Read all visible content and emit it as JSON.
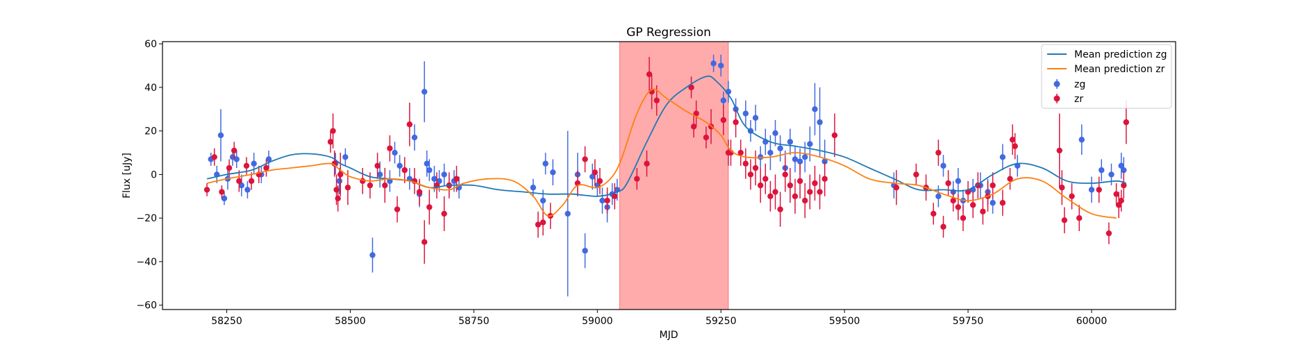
{
  "chart_data": {
    "type": "scatter",
    "title": "GP Regression",
    "xlabel": "MJD",
    "ylabel": "Flux [uJy]",
    "xlim": [
      58120,
      60170
    ],
    "ylim": [
      -62,
      61
    ],
    "x_ticks": [
      58250,
      58500,
      58750,
      59000,
      59250,
      59500,
      59750,
      60000
    ],
    "y_ticks": [
      -60,
      -40,
      -20,
      0,
      20,
      40,
      60
    ],
    "grid": false,
    "legend_position": "top-right",
    "legend": [
      {
        "label": "Mean prediction zg",
        "kind": "line",
        "color": "#1f77b4"
      },
      {
        "label": "Mean prediction zr",
        "kind": "line",
        "color": "#ff7f0e"
      },
      {
        "label": "zg",
        "kind": "errorbar",
        "color": "#4169e1"
      },
      {
        "label": "zr",
        "kind": "errorbar",
        "color": "#dc143c"
      }
    ],
    "shaded_region": {
      "x": [
        59045,
        59265
      ],
      "color": "#ff0000",
      "alpha": 0.33
    },
    "lines": [
      {
        "name": "Mean prediction zg",
        "color": "#1f77b4",
        "x": [
          58210,
          58250,
          58300,
          58340,
          58380,
          58420,
          58460,
          58480,
          58500,
          58540,
          58580,
          58620,
          58660,
          58700,
          58750,
          58800,
          58850,
          58900,
          58950,
          59000,
          59040,
          59060,
          59100,
          59140,
          59180,
          59220,
          59240,
          59270,
          59300,
          59350,
          59400,
          59450,
          59500,
          59550,
          59600,
          59650,
          59700,
          59750,
          59800,
          59850,
          59900,
          59950,
          60000,
          60050,
          60070
        ],
        "y": [
          -2,
          0,
          2,
          6,
          9,
          9.5,
          8,
          5,
          3,
          -1,
          -2,
          -3,
          -6,
          -5,
          -5,
          -7,
          -8,
          -9,
          -9,
          -10,
          -8,
          -4,
          15,
          32,
          40,
          45,
          43,
          35,
          22,
          15,
          13,
          11,
          8,
          3,
          -2,
          -7,
          -7,
          -7,
          0,
          5,
          3,
          -3,
          -4,
          -3,
          -4
        ]
      },
      {
        "name": "Mean prediction zr",
        "color": "#ff7f0e",
        "x": [
          58210,
          58250,
          58300,
          58340,
          58380,
          58420,
          58460,
          58480,
          58500,
          58540,
          58580,
          58620,
          58660,
          58700,
          58730,
          58780,
          58830,
          58870,
          58900,
          58930,
          58960,
          59000,
          59030,
          59050,
          59080,
          59110,
          59140,
          59180,
          59220,
          59250,
          59270,
          59300,
          59350,
          59400,
          59450,
          59500,
          59550,
          59600,
          59650,
          59700,
          59750,
          59800,
          59850,
          59900,
          59950,
          60000,
          60050
        ],
        "y": [
          -4,
          -2,
          0,
          2,
          3,
          4,
          5,
          2,
          -1,
          -3,
          -2,
          -3,
          -6,
          -7,
          -4,
          -2,
          -3,
          -10,
          -19,
          -14,
          -5,
          -6,
          -1,
          8,
          28,
          39,
          35,
          29,
          24,
          18,
          11,
          8,
          8,
          10,
          8,
          4,
          -2,
          -4,
          -5,
          -9,
          -12,
          -9,
          -2,
          -3,
          -11,
          -18,
          -20
        ]
      }
    ],
    "series": [
      {
        "name": "zg",
        "color": "#4169e1",
        "x": [
          58218,
          58230,
          58238,
          58245,
          58252,
          58262,
          58270,
          58280,
          58292,
          58305,
          58320,
          58335,
          58470,
          58478,
          58490,
          58545,
          58560,
          58580,
          58590,
          58600,
          58610,
          58620,
          58630,
          58640,
          58650,
          58655,
          58660,
          58670,
          58680,
          58690,
          58700,
          58710,
          58720,
          58870,
          58890,
          58895,
          58910,
          58940,
          58960,
          58975,
          58990,
          59000,
          59010,
          59020,
          59030,
          59040,
          59235,
          59250,
          59255,
          59265,
          59280,
          59300,
          59310,
          59320,
          59330,
          59340,
          59350,
          59360,
          59370,
          59380,
          59390,
          59400,
          59410,
          59420,
          59430,
          59440,
          59450,
          59460,
          59600,
          59690,
          59700,
          59720,
          59730,
          59740,
          59760,
          59775,
          59790,
          59800,
          59820,
          59850,
          59980,
          60000,
          60020,
          60040,
          60060,
          60065
        ],
        "y": [
          7,
          0,
          18,
          -11,
          -2,
          8,
          7,
          -5,
          -7,
          5,
          0,
          7,
          5,
          -3,
          8,
          -37,
          0,
          -3,
          10,
          4,
          2,
          -2,
          17,
          -9,
          38,
          5,
          2,
          -2,
          -3,
          0,
          -5,
          -3,
          -6,
          -6,
          -12,
          5,
          1,
          -18,
          0,
          -35,
          -1,
          -5,
          -12,
          -15,
          -9,
          -7,
          51,
          50,
          34,
          38,
          30,
          28,
          20,
          26,
          8,
          15,
          10,
          19,
          12,
          3,
          15,
          7,
          6,
          8,
          14,
          30,
          24,
          6,
          -5,
          -10,
          4,
          -8,
          -3,
          -12,
          -7,
          -5,
          -8,
          -13,
          8,
          4,
          16,
          -7,
          2,
          0,
          4,
          2
        ],
        "err": [
          3,
          4,
          12,
          3,
          5,
          4,
          4,
          5,
          4,
          5,
          4,
          4,
          5,
          6,
          4,
          8,
          6,
          5,
          5,
          5,
          4,
          5,
          6,
          6,
          14,
          6,
          5,
          6,
          5,
          5,
          5,
          5,
          5,
          4,
          5,
          5,
          6,
          38,
          10,
          8,
          6,
          5,
          6,
          7,
          5,
          5,
          4,
          5,
          4,
          5,
          5,
          6,
          5,
          6,
          5,
          6,
          8,
          6,
          6,
          8,
          6,
          6,
          6,
          7,
          8,
          12,
          16,
          10,
          6,
          5,
          5,
          5,
          6,
          5,
          5,
          6,
          6,
          5,
          6,
          5,
          7,
          6,
          5,
          5,
          6,
          6
        ]
      },
      {
        "name": "zr",
        "color": "#dc143c",
        "x": [
          58210,
          58225,
          58240,
          58255,
          58265,
          58275,
          58290,
          58300,
          58315,
          58330,
          58460,
          58465,
          58468,
          58472,
          58475,
          58480,
          58495,
          58525,
          58540,
          58555,
          58570,
          58580,
          58595,
          58610,
          58620,
          58630,
          58640,
          58650,
          58660,
          58675,
          58690,
          58700,
          58715,
          58880,
          58890,
          58905,
          58960,
          58975,
          58995,
          59005,
          59020,
          59035,
          59080,
          59100,
          59105,
          59110,
          59120,
          59190,
          59195,
          59200,
          59220,
          59230,
          59255,
          59265,
          59270,
          59280,
          59290,
          59300,
          59310,
          59320,
          59330,
          59340,
          59350,
          59360,
          59370,
          59380,
          59390,
          59400,
          59410,
          59420,
          59430,
          59440,
          59450,
          59460,
          59480,
          59605,
          59645,
          59665,
          59680,
          59690,
          59700,
          59710,
          59720,
          59730,
          59740,
          59750,
          59760,
          59770,
          59780,
          59790,
          59800,
          59820,
          59835,
          59840,
          59845,
          59935,
          59940,
          59945,
          59960,
          59975,
          60015,
          60035,
          60050,
          60055,
          60060,
          60065,
          60070
        ],
        "y": [
          -7,
          8,
          -8,
          3,
          11,
          -3,
          4,
          -3,
          0,
          3,
          15,
          20,
          5,
          -7,
          -11,
          0,
          -6,
          -3,
          -5,
          4,
          -5,
          12,
          -16,
          2,
          23,
          -3,
          -8,
          -31,
          -15,
          -5,
          -18,
          -5,
          -2,
          -23,
          -22,
          -19,
          -4,
          7,
          1,
          -3,
          -12,
          -10,
          -2,
          5,
          46,
          38,
          34,
          40,
          22,
          28,
          17,
          22,
          25,
          10,
          10,
          24,
          10,
          5,
          0,
          3,
          -5,
          -2,
          -10,
          -8,
          -16,
          0,
          -5,
          -10,
          -3,
          -12,
          -8,
          -4,
          -8,
          -2,
          18,
          -6,
          0,
          -6,
          -18,
          10,
          -24,
          -4,
          -12,
          -15,
          -20,
          -8,
          -14,
          -5,
          -17,
          -10,
          -5,
          -13,
          -2,
          16,
          13,
          11,
          -6,
          -21,
          -10,
          -20,
          -7,
          -27,
          -9,
          -14,
          -12,
          -5,
          24
        ],
        "err": [
          3,
          4,
          3,
          4,
          4,
          5,
          4,
          4,
          4,
          4,
          5,
          8,
          6,
          7,
          6,
          10,
          8,
          6,
          6,
          6,
          8,
          6,
          6,
          6,
          10,
          6,
          6,
          10,
          8,
          6,
          8,
          6,
          6,
          6,
          6,
          6,
          6,
          6,
          6,
          6,
          6,
          6,
          5,
          6,
          8,
          8,
          7,
          5,
          5,
          6,
          5,
          8,
          7,
          6,
          6,
          7,
          6,
          7,
          7,
          8,
          8,
          7,
          7,
          8,
          8,
          8,
          8,
          8,
          8,
          8,
          8,
          8,
          8,
          8,
          10,
          8,
          5,
          6,
          5,
          6,
          5,
          6,
          5,
          6,
          6,
          5,
          6,
          6,
          6,
          7,
          6,
          6,
          5,
          7,
          6,
          17,
          8,
          6,
          6,
          6,
          6,
          5,
          5,
          6,
          5,
          6,
          10
        ]
      }
    ]
  }
}
